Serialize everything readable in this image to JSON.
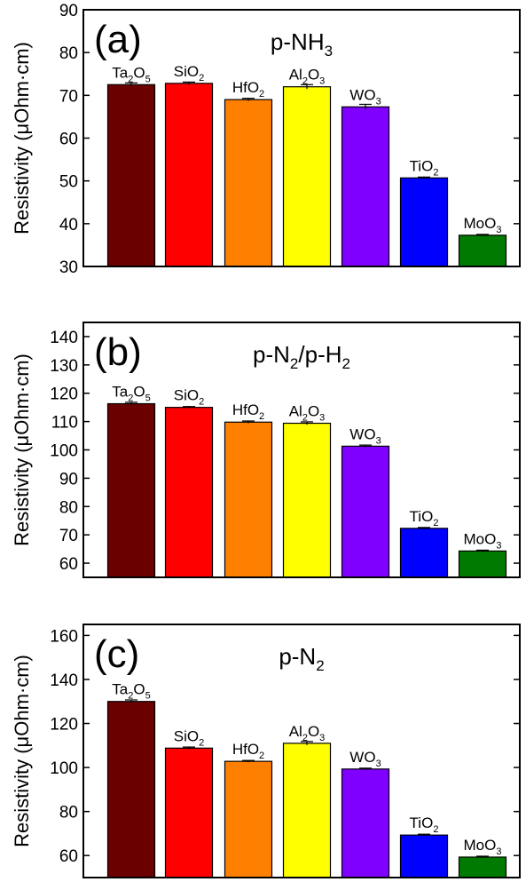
{
  "chart_data": [
    {
      "type": "bar",
      "panel_label": "(a)",
      "title": "p-NH",
      "title_sub": "3",
      "title_tail": "",
      "ylabel": "Resistivity (μOhm·cm)",
      "ylim": [
        30,
        90
      ],
      "yticks": [
        30,
        40,
        50,
        60,
        70,
        80,
        90
      ],
      "grid": false,
      "categories": [
        "Ta2O5",
        "SiO2",
        "HfO2",
        "Al2O3",
        "WO3",
        "TiO2",
        "MoO3"
      ],
      "values": [
        72.5,
        72.8,
        69.0,
        72.0,
        67.3,
        50.7,
        37.3
      ],
      "errors": [
        0.4,
        0.3,
        0.3,
        0.5,
        0.6,
        0.2,
        0.2
      ]
    },
    {
      "type": "bar",
      "panel_label": "(b)",
      "title": "p-N",
      "title_sub": "2",
      "title_tail": "/p-H",
      "title_tail_sub": "2",
      "ylabel": "Resistivity (μOhm·cm)",
      "ylim": [
        55,
        145
      ],
      "yticks": [
        60,
        70,
        80,
        90,
        100,
        110,
        120,
        130,
        140
      ],
      "grid": false,
      "categories": [
        "Ta2O5",
        "SiO2",
        "HfO2",
        "Al2O3",
        "WO3",
        "TiO2",
        "MoO3"
      ],
      "values": [
        116.3,
        115.0,
        109.8,
        109.4,
        101.3,
        72.3,
        64.3
      ],
      "errors": [
        0.5,
        0.3,
        0.4,
        0.5,
        0.4,
        0.3,
        0.3
      ]
    },
    {
      "type": "bar",
      "panel_label": "(c)",
      "title": "p-N",
      "title_sub": "2",
      "title_tail": "",
      "ylabel": "Resistivity (μOhm·cm)",
      "ylim": [
        50,
        165
      ],
      "yticks": [
        60,
        80,
        100,
        120,
        140,
        160
      ],
      "grid": false,
      "categories": [
        "Ta2O5",
        "SiO2",
        "HfO2",
        "Al2O3",
        "WO3",
        "TiO2",
        "MoO3"
      ],
      "values": [
        130.0,
        108.8,
        102.8,
        111.0,
        99.3,
        69.3,
        59.3
      ],
      "errors": [
        0.7,
        0.5,
        0.4,
        0.8,
        0.4,
        0.4,
        0.4
      ]
    }
  ],
  "bar_labels": [
    {
      "base": "Ta",
      "sub1": "2",
      "mid": "O",
      "sub2": "5"
    },
    {
      "base": "SiO",
      "sub1": "2",
      "mid": "",
      "sub2": ""
    },
    {
      "base": "HfO",
      "sub1": "2",
      "mid": "",
      "sub2": ""
    },
    {
      "base": "Al",
      "sub1": "2",
      "mid": "O",
      "sub2": "3"
    },
    {
      "base": "WO",
      "sub1": "3",
      "mid": "",
      "sub2": ""
    },
    {
      "base": "TiO",
      "sub1": "2",
      "mid": "",
      "sub2": ""
    },
    {
      "base": "MoO",
      "sub1": "3",
      "mid": "",
      "sub2": ""
    }
  ],
  "colors": {
    "Ta2O5": "#6b0000",
    "SiO2": "#ff0000",
    "HfO2": "#ff8000",
    "Al2O3": "#ffff00",
    "WO3": "#8000ff",
    "TiO2": "#0000ff",
    "MoO3": "#007a00"
  }
}
